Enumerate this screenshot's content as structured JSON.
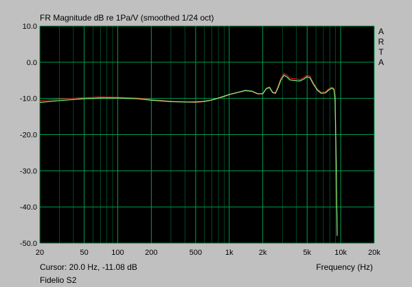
{
  "app": {
    "cursor_readout": "Cursor: 20.0 Hz, -11.08 dB",
    "device_name": "Fidelio S2",
    "watermark": "ARTA"
  },
  "colors": {
    "background": "#c0c0c0",
    "plot_bg": "#000000",
    "grid": "#00a050",
    "series_red": "#d02020",
    "series_green": "#80ff80"
  },
  "chart_data": {
    "type": "line",
    "title": "FR Magnitude dB re 1Pa/V (smoothed 1/24 oct)",
    "xlabel": "Frequency (Hz)",
    "ylabel": "",
    "x_scale": "log",
    "xlim": [
      20,
      20000
    ],
    "ylim": [
      -50,
      10
    ],
    "grid": true,
    "x_ticks": [
      20,
      50,
      100,
      200,
      500,
      1000,
      2000,
      5000,
      10000,
      20000
    ],
    "x_tick_labels": [
      "20",
      "50",
      "100",
      "200",
      "500",
      "1k",
      "2k",
      "5k",
      "10k",
      "20k"
    ],
    "y_ticks": [
      10,
      0,
      -10,
      -20,
      -30,
      -40,
      -50
    ],
    "y_tick_labels": [
      "10.0",
      "0.0",
      "-10.0",
      "-20.0",
      "-30.0",
      "-40.0",
      "-50.0"
    ],
    "series": [
      {
        "color": "#d02020",
        "points": [
          [
            20,
            -10.6
          ],
          [
            30,
            -10.2
          ],
          [
            50,
            -9.8
          ],
          [
            70,
            -9.6
          ],
          [
            100,
            -9.7
          ],
          [
            150,
            -9.9
          ],
          [
            200,
            -10.3
          ],
          [
            300,
            -10.8
          ],
          [
            400,
            -11.0
          ],
          [
            500,
            -11.1
          ],
          [
            600,
            -10.9
          ],
          [
            700,
            -10.5
          ],
          [
            800,
            -10.0
          ],
          [
            900,
            -9.5
          ],
          [
            1000,
            -9.0
          ],
          [
            1200,
            -8.4
          ],
          [
            1400,
            -7.9
          ],
          [
            1600,
            -8.1
          ],
          [
            1800,
            -8.8
          ],
          [
            2000,
            -8.8
          ],
          [
            2150,
            -7.2
          ],
          [
            2300,
            -6.8
          ],
          [
            2450,
            -8.2
          ],
          [
            2600,
            -8.4
          ],
          [
            2750,
            -6.5
          ],
          [
            2900,
            -4.5
          ],
          [
            3100,
            -3.1
          ],
          [
            3300,
            -3.6
          ],
          [
            3500,
            -4.4
          ],
          [
            4000,
            -4.6
          ],
          [
            4300,
            -4.8
          ],
          [
            4700,
            -4.2
          ],
          [
            5000,
            -3.6
          ],
          [
            5300,
            -3.9
          ],
          [
            5700,
            -5.8
          ],
          [
            6200,
            -7.5
          ],
          [
            6700,
            -8.3
          ],
          [
            7300,
            -8.2
          ],
          [
            7800,
            -7.4
          ],
          [
            8300,
            -6.9
          ],
          [
            8700,
            -7.2
          ],
          [
            8900,
            -9.5
          ],
          [
            9100,
            -25
          ],
          [
            9300,
            -47
          ]
        ]
      },
      {
        "color": "#80ff80",
        "points": [
          [
            20,
            -11.1
          ],
          [
            30,
            -10.6
          ],
          [
            50,
            -10.1
          ],
          [
            70,
            -9.9
          ],
          [
            100,
            -9.9
          ],
          [
            150,
            -10.1
          ],
          [
            200,
            -10.5
          ],
          [
            300,
            -10.9
          ],
          [
            400,
            -11.0
          ],
          [
            500,
            -11.0
          ],
          [
            600,
            -10.8
          ],
          [
            700,
            -10.4
          ],
          [
            800,
            -9.9
          ],
          [
            900,
            -9.4
          ],
          [
            1000,
            -8.9
          ],
          [
            1200,
            -8.3
          ],
          [
            1400,
            -7.8
          ],
          [
            1600,
            -8.0
          ],
          [
            1800,
            -8.7
          ],
          [
            2000,
            -8.7
          ],
          [
            2150,
            -7.3
          ],
          [
            2300,
            -7.0
          ],
          [
            2450,
            -8.4
          ],
          [
            2600,
            -8.6
          ],
          [
            2750,
            -7.0
          ],
          [
            2900,
            -5.0
          ],
          [
            3100,
            -3.6
          ],
          [
            3300,
            -4.1
          ],
          [
            3500,
            -4.9
          ],
          [
            4000,
            -5.1
          ],
          [
            4300,
            -5.2
          ],
          [
            4700,
            -4.6
          ],
          [
            5000,
            -4.0
          ],
          [
            5300,
            -4.3
          ],
          [
            5700,
            -6.1
          ],
          [
            6200,
            -7.8
          ],
          [
            6700,
            -8.6
          ],
          [
            7300,
            -8.5
          ],
          [
            7800,
            -7.7
          ],
          [
            8300,
            -7.2
          ],
          [
            8700,
            -7.5
          ],
          [
            8900,
            -10
          ],
          [
            9100,
            -27
          ],
          [
            9300,
            -48
          ]
        ]
      }
    ]
  }
}
